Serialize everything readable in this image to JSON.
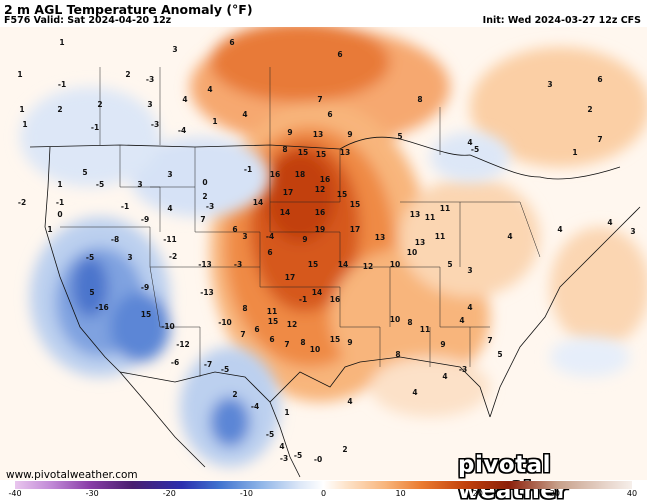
{
  "header": {
    "title": "2 m AGL Temperature Anomaly (°F)",
    "valid": "F576 Valid: Sat 2024-04-20 12z",
    "init": "Init: Wed 2024-03-27 12z CFS"
  },
  "footer": {
    "website": "www.pivotalweather.com",
    "brand": "pivotal weather"
  },
  "colorbar": {
    "tick_labels": [
      "-40",
      "-30",
      "-20",
      "-10",
      "0",
      "10",
      "20",
      "30",
      "40"
    ],
    "range": [
      -40,
      40
    ],
    "colors": {
      "warm_strong": "#c2410c",
      "warm_mid": "#ea7a2f",
      "warm_light": "#f8b57c",
      "warm_faint": "#fde1c6",
      "neutral": "#ffffff",
      "cool_faint": "#dbe6f7",
      "cool_light": "#9db8e6",
      "cool_mid": "#5b86d6",
      "cool_strong": "#2b4fbf"
    }
  },
  "anomaly_labels": [
    {
      "v": "1"
    },
    {
      "v": "3"
    },
    {
      "v": "6"
    },
    {
      "v": "6"
    },
    {
      "v": "1"
    },
    {
      "v": "2"
    },
    {
      "v": "-1"
    },
    {
      "v": "-3"
    },
    {
      "v": "4"
    },
    {
      "v": "7"
    },
    {
      "v": "8"
    },
    {
      "v": "3"
    },
    {
      "v": "6"
    },
    {
      "v": "1"
    },
    {
      "v": "3"
    },
    {
      "v": "4"
    },
    {
      "v": "2"
    },
    {
      "v": "2"
    },
    {
      "v": "4"
    },
    {
      "v": "6"
    },
    {
      "v": "2"
    },
    {
      "v": "1"
    },
    {
      "v": "-3"
    },
    {
      "v": "9"
    },
    {
      "v": "13"
    },
    {
      "v": "9"
    },
    {
      "v": "5"
    },
    {
      "v": "4"
    },
    {
      "v": "-1"
    },
    {
      "v": "-4"
    },
    {
      "v": "1"
    },
    {
      "v": "8"
    },
    {
      "v": "15"
    },
    {
      "v": "15"
    },
    {
      "v": "13"
    },
    {
      "v": "5"
    },
    {
      "v": "3"
    },
    {
      "v": "0"
    },
    {
      "v": "-1"
    },
    {
      "v": "16"
    },
    {
      "v": "18"
    },
    {
      "v": "16"
    },
    {
      "v": "-5"
    },
    {
      "v": "1"
    },
    {
      "v": "3"
    },
    {
      "v": "1"
    },
    {
      "v": "7"
    },
    {
      "v": "-5"
    },
    {
      "v": "-2"
    },
    {
      "v": "-1"
    },
    {
      "v": "2"
    },
    {
      "v": "14"
    },
    {
      "v": "17"
    },
    {
      "v": "12"
    },
    {
      "v": "15"
    },
    {
      "v": "-1"
    },
    {
      "v": "-9"
    },
    {
      "v": "4"
    },
    {
      "v": "7"
    },
    {
      "v": "14"
    },
    {
      "v": "16"
    },
    {
      "v": "15"
    },
    {
      "v": "13"
    },
    {
      "v": "11"
    },
    {
      "v": "11"
    },
    {
      "v": "-3"
    },
    {
      "v": "1"
    },
    {
      "v": "0"
    },
    {
      "v": "6"
    },
    {
      "v": "-8"
    },
    {
      "v": "-11"
    },
    {
      "v": "-4"
    },
    {
      "v": "3"
    },
    {
      "v": "9"
    },
    {
      "v": "19"
    },
    {
      "v": "17"
    },
    {
      "v": "13"
    },
    {
      "v": "13"
    },
    {
      "v": "11"
    },
    {
      "v": "10"
    },
    {
      "v": "4"
    },
    {
      "v": "3"
    },
    {
      "v": "3"
    },
    {
      "v": "-5"
    },
    {
      "v": "-2"
    },
    {
      "v": "-13"
    },
    {
      "v": "-3"
    },
    {
      "v": "6"
    },
    {
      "v": "15"
    },
    {
      "v": "17"
    },
    {
      "v": "14"
    },
    {
      "v": "12"
    },
    {
      "v": "10"
    },
    {
      "v": "5"
    },
    {
      "v": "3"
    },
    {
      "v": "4"
    },
    {
      "v": "4"
    },
    {
      "v": "5"
    },
    {
      "v": "-16"
    },
    {
      "v": "-9"
    },
    {
      "v": "-13"
    },
    {
      "v": "-1"
    },
    {
      "v": "14"
    },
    {
      "v": "16"
    },
    {
      "v": "15"
    },
    {
      "v": "-10"
    },
    {
      "v": "-12"
    },
    {
      "v": "-10"
    },
    {
      "v": "7"
    },
    {
      "v": "15"
    },
    {
      "v": "12"
    },
    {
      "v": "11"
    },
    {
      "v": "8"
    },
    {
      "v": "6"
    },
    {
      "v": "6"
    },
    {
      "v": "7"
    },
    {
      "v": "8"
    },
    {
      "v": "15"
    },
    {
      "v": "10"
    },
    {
      "v": "9"
    },
    {
      "v": "10"
    },
    {
      "v": "8"
    },
    {
      "v": "11"
    },
    {
      "v": "9"
    },
    {
      "v": "8"
    },
    {
      "v": "-6"
    },
    {
      "v": "-7"
    },
    {
      "v": "-5"
    },
    {
      "v": "4"
    },
    {
      "v": "7"
    },
    {
      "v": "5"
    },
    {
      "v": "4"
    },
    {
      "v": "2"
    },
    {
      "v": "-4"
    },
    {
      "v": "-5"
    },
    {
      "v": "1"
    },
    {
      "v": "4"
    },
    {
      "v": "4"
    },
    {
      "v": "-3"
    },
    {
      "v": "4"
    },
    {
      "v": "4"
    },
    {
      "v": "-3"
    },
    {
      "v": "-5"
    },
    {
      "v": "-0"
    },
    {
      "v": "2"
    },
    {
      "v": "2"
    }
  ]
}
